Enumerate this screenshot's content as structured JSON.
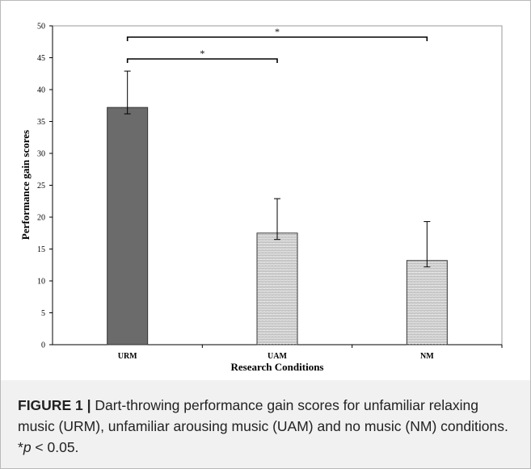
{
  "chart_data": {
    "type": "bar",
    "categories": [
      "URM",
      "UAM",
      "NM"
    ],
    "values": [
      37.2,
      17.5,
      13.2
    ],
    "error_upper": [
      42.9,
      22.9,
      19.3
    ],
    "error_lower": [
      36.2,
      16.5,
      12.2
    ],
    "ylim": [
      0,
      50
    ],
    "yticks": [
      0,
      5,
      10,
      15,
      20,
      25,
      30,
      35,
      40,
      45,
      50
    ],
    "xlabel": "Research Conditions",
    "ylabel": "Performance gain scores",
    "bar_colors": [
      "#6b6b6b",
      "#ececec",
      "#ececec"
    ],
    "significance": [
      {
        "from": "URM",
        "to": "UAM",
        "label": "*"
      },
      {
        "from": "URM",
        "to": "NM",
        "label": "*"
      }
    ],
    "grid": false,
    "legend": "none"
  },
  "caption": {
    "label": "FIGURE 1 |",
    "text": " Dart-throwing performance gain scores for unfamiliar relaxing music (URM), unfamiliar arousing music (UAM) and no music (NM) conditions. ",
    "p_prefix": "*",
    "p_symbol": "p",
    "p_rest": " < 0.05."
  }
}
